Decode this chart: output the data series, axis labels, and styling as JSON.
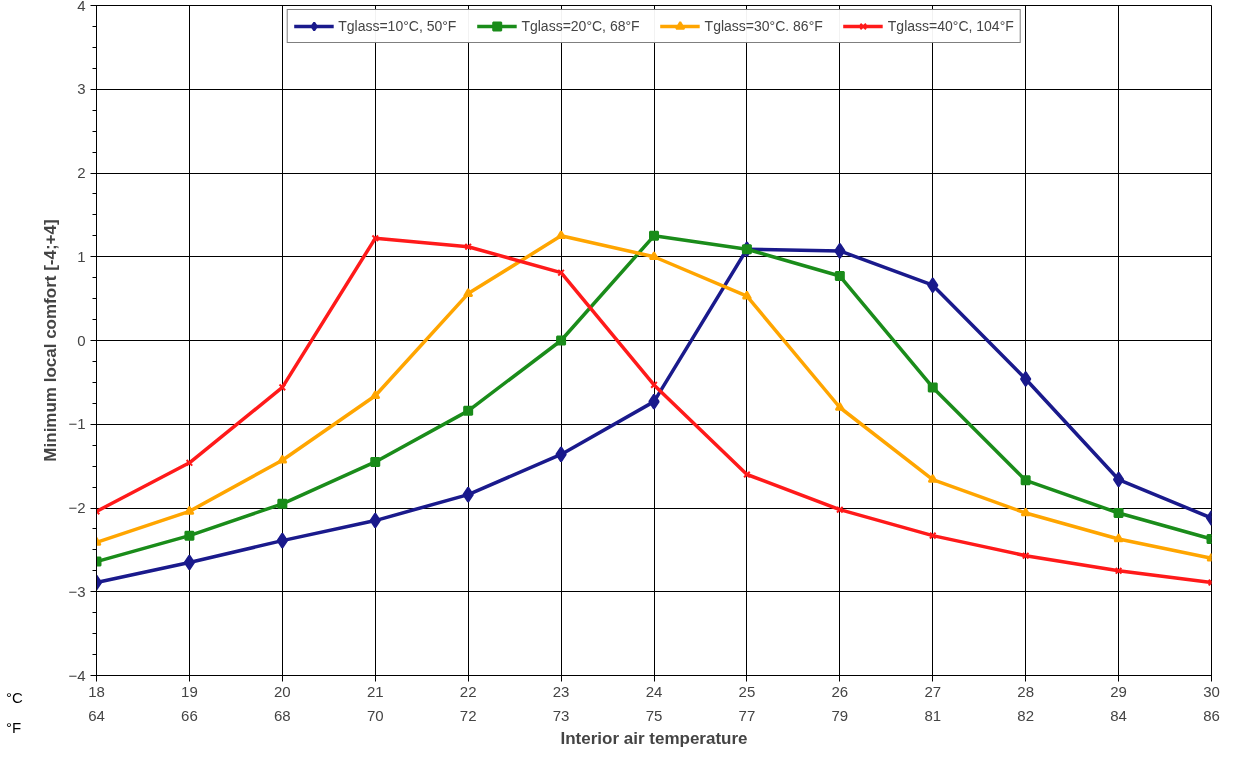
{
  "chart_data": {
    "type": "line",
    "xlabel": "Interior air temperature",
    "ylabel": "Minimum local comfort [-4;+4]",
    "x": [
      18,
      19,
      20,
      21,
      22,
      23,
      24,
      25,
      26,
      27,
      28,
      29,
      30
    ],
    "series": [
      {
        "name": "Tglass=10°C, 50°F",
        "color": "#1a1a8c",
        "marker": "diamond",
        "values": [
          -2.89,
          -2.65,
          -2.39,
          -2.15,
          -1.84,
          -1.36,
          -0.73,
          1.09,
          1.07,
          0.66,
          -0.46,
          -1.66,
          -2.12
        ]
      },
      {
        "name": "Tglass=20°C, 68°F",
        "color": "#1a8c1a",
        "marker": "square",
        "values": [
          -2.64,
          -2.33,
          -1.95,
          -1.45,
          -0.84,
          0,
          1.25,
          1.09,
          0.77,
          -0.56,
          -1.67,
          -2.06,
          -2.37
        ]
      },
      {
        "name": "Tglass=30°C. 86°F",
        "color": "#ffa500",
        "marker": "triangle",
        "values": [
          -2.41,
          -2.04,
          -1.43,
          -0.66,
          0.56,
          1.25,
          1.0,
          0.53,
          -0.8,
          -1.66,
          -2.06,
          -2.37,
          -2.6
        ]
      },
      {
        "name": "Tglass=40°C, 104°F",
        "color": "#ff1a1a",
        "marker": "cross",
        "values": [
          -2.04,
          -1.46,
          -0.56,
          1.22,
          1.12,
          0.81,
          -0.53,
          -1.6,
          -2.02,
          -2.33,
          -2.57,
          -2.75,
          -2.89
        ]
      }
    ],
    "xlim": [
      18,
      30
    ],
    "xticks": [
      18,
      19,
      20,
      21,
      22,
      23,
      24,
      25,
      26,
      27,
      28,
      29,
      30
    ],
    "x2lim": [
      64.4,
      86
    ],
    "x2ticks": [
      {
        "value": 64.4,
        "label": "64"
      },
      {
        "value": 66.2,
        "label": "66"
      },
      {
        "value": 68,
        "label": "68"
      },
      {
        "value": 69.8,
        "label": "70"
      },
      {
        "value": 71.6,
        "label": "72"
      },
      {
        "value": 73.4,
        "label": "73"
      },
      {
        "value": 75.2,
        "label": "75"
      },
      {
        "value": 77,
        "label": "77"
      },
      {
        "value": 78.8,
        "label": "79"
      },
      {
        "value": 80.6,
        "label": "81"
      },
      {
        "value": 82.4,
        "label": "82"
      },
      {
        "value": 84.2,
        "label": "84"
      },
      {
        "value": 86,
        "label": "86"
      }
    ],
    "ylim": [
      -4,
      4
    ],
    "yticks": [
      -4,
      -3,
      -2,
      -1,
      0,
      1,
      2,
      3,
      4
    ],
    "annotations": [
      "°C",
      "°F"
    ],
    "grid": true,
    "legend": "top",
    "line_style": "solid"
  }
}
